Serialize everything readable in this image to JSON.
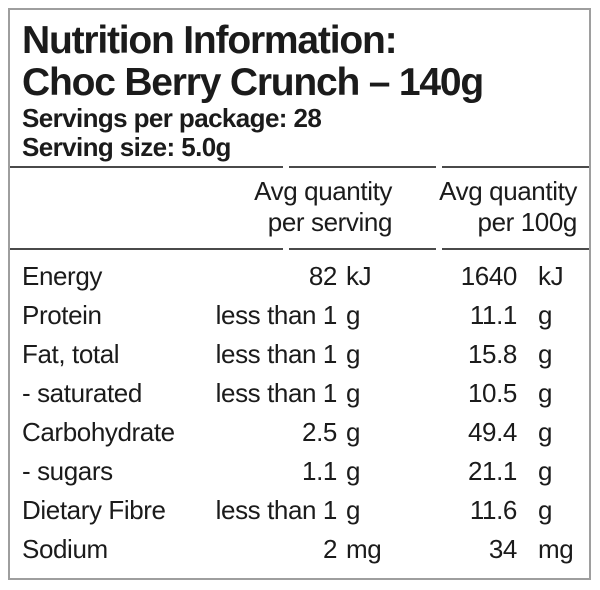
{
  "header": {
    "title": "Nutrition Information:",
    "product": "Choc Berry Crunch – 140g",
    "servings_per_package": "Servings per package: 28",
    "serving_size": "Serving size: 5.0g"
  },
  "columns": {
    "serving_line1": "Avg quantity",
    "serving_line2": "per serving",
    "per100_line1": "Avg quantity",
    "per100_line2": "per 100g"
  },
  "rows": [
    {
      "name": "Energy",
      "serving_value": "82",
      "serving_unit": "kJ",
      "per100_value": "1640",
      "per100_unit": "kJ"
    },
    {
      "name": "Protein",
      "serving_value": "less than 1",
      "serving_unit": "g",
      "per100_value": "11.1",
      "per100_unit": "g"
    },
    {
      "name": "Fat, total",
      "serving_value": "less than 1",
      "serving_unit": "g",
      "per100_value": "15.8",
      "per100_unit": "g"
    },
    {
      "name": "- saturated",
      "serving_value": "less than 1",
      "serving_unit": "g",
      "per100_value": "10.5",
      "per100_unit": "g"
    },
    {
      "name": "Carbohydrate",
      "serving_value": "2.5",
      "serving_unit": "g",
      "per100_value": "49.4",
      "per100_unit": "g"
    },
    {
      "name": "- sugars",
      "serving_value": "1.1",
      "serving_unit": "g",
      "per100_value": "21.1",
      "per100_unit": "g"
    },
    {
      "name": "Dietary Fibre",
      "serving_value": "less than 1",
      "serving_unit": "g",
      "per100_value": "11.6",
      "per100_unit": "g"
    },
    {
      "name": "Sodium",
      "serving_value": "2",
      "serving_unit": "mg",
      "per100_value": "34",
      "per100_unit": "mg"
    }
  ],
  "colors": {
    "text": "#1b1b1b",
    "rule": "#4a4a4a",
    "border": "#9e9e9e"
  }
}
